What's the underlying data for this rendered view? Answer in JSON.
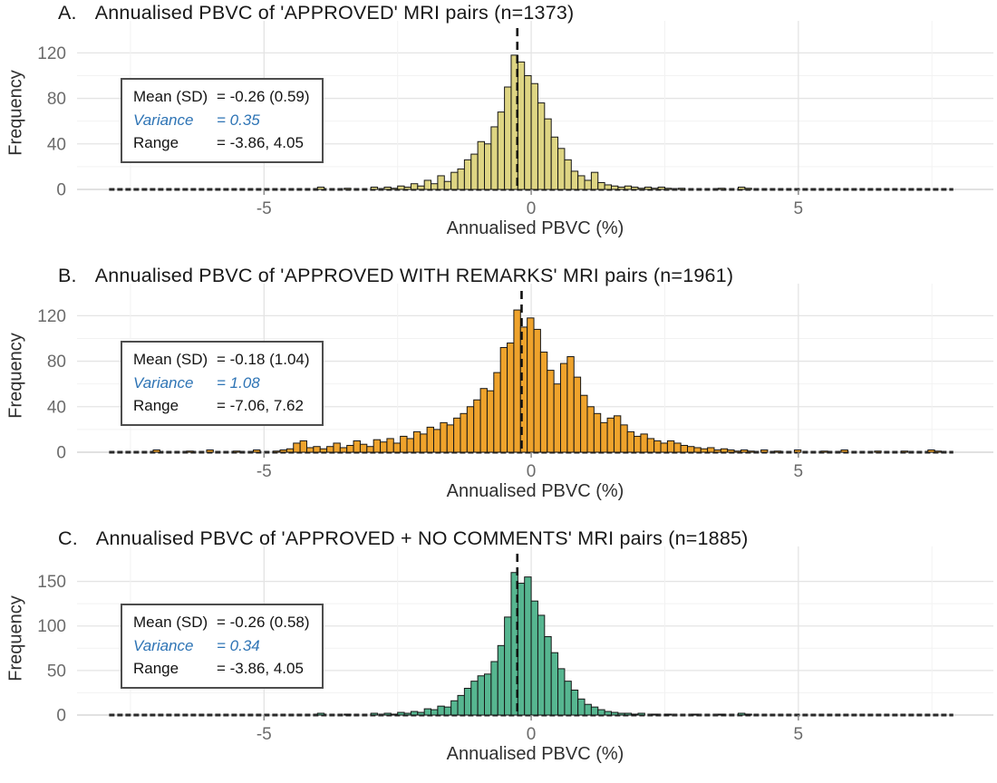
{
  "figure": {
    "x_axis_label": "Annualised PBVC (%)",
    "y_axis_label": "Frequency"
  },
  "colors": {
    "bar_edge": "#161616",
    "mean_line": "#111111",
    "grid_major": "#e4e4e4",
    "grid_minor": "#f2f2f2",
    "baseline_light": "#d9d9d9",
    "baseline_dark": "#2a2a2a",
    "tick_mark": "#8a8a8a",
    "tick_text": "#6b6b6b",
    "variance_blue": "#2e74b5"
  },
  "chart_data": [
    {
      "type": "bar",
      "panel_letter": "A.",
      "title": "Annualised PBVC of 'APPROVED' MRI pairs (n=1373)",
      "n": 1373,
      "xlabel": "Annualised PBVC (%)",
      "ylabel": "Frequency",
      "x_ticks": [
        -5,
        0,
        5
      ],
      "y_ticks": [
        0,
        40,
        80,
        120
      ],
      "xlim": [
        -8.5,
        8.65
      ],
      "ylim": [
        0,
        137
      ],
      "grid": {
        "x_major": [
          -5,
          0,
          5
        ],
        "x_minor": [
          -7.5,
          -2.5,
          2.5,
          7.5
        ],
        "y_major": [
          0,
          40,
          80,
          120
        ],
        "y_minor": [
          20,
          60,
          100
        ]
      },
      "bar_color": "#ded583",
      "mean_line_x": -0.26,
      "stats": {
        "mean_label": "Mean (SD)",
        "mean_value": "= -0.26 (0.59)",
        "variance_label": "Variance",
        "variance_value": "=  0.35",
        "range_label": "Range",
        "range_value": "= -3.86, 4.05"
      },
      "bins": {
        "start": -4.0,
        "width": 0.125,
        "heights": [
          2,
          0,
          0,
          0,
          1,
          0,
          0,
          0,
          2,
          0,
          2,
          1,
          3,
          2,
          5,
          3,
          8,
          5,
          12,
          7,
          15,
          18,
          26,
          31,
          42,
          40,
          55,
          68,
          90,
          118,
          112,
          100,
          93,
          76,
          62,
          46,
          36,
          26,
          16,
          12,
          8,
          15,
          6,
          4,
          3,
          2,
          3,
          2,
          1,
          2,
          1,
          2,
          1,
          0,
          1,
          0,
          0,
          0,
          0,
          0,
          1,
          0,
          0,
          2,
          1,
          0
        ]
      }
    },
    {
      "type": "bar",
      "panel_letter": "B.",
      "title": "Annualised PBVC of 'APPROVED WITH REMARKS' MRI pairs (n=1961)",
      "n": 1961,
      "xlabel": "Annualised PBVC (%)",
      "ylabel": "Frequency",
      "x_ticks": [
        -5,
        0,
        5
      ],
      "y_ticks": [
        0,
        40,
        80,
        120
      ],
      "xlim": [
        -8.5,
        8.65
      ],
      "ylim": [
        0,
        137
      ],
      "grid": {
        "x_major": [
          -5,
          0,
          5
        ],
        "x_minor": [
          -7.5,
          -2.5,
          2.5,
          7.5
        ],
        "y_major": [
          0,
          40,
          80,
          120
        ],
        "y_minor": [
          20,
          60,
          100
        ]
      },
      "bar_color": "#efa32c",
      "mean_line_x": -0.18,
      "stats": {
        "mean_label": "Mean (SD)",
        "mean_value": "= -0.18 (1.04)",
        "variance_label": "Variance",
        "variance_value": "=  1.08",
        "range_label": "Range",
        "range_value": "= -7.06, 7.62"
      },
      "bins": {
        "start": -7.2,
        "width": 0.125,
        "heights": [
          0,
          2,
          0,
          0,
          0,
          0,
          1,
          0,
          0,
          2,
          0,
          0,
          0,
          1,
          0,
          0,
          2,
          0,
          0,
          1,
          2,
          3,
          8,
          10,
          4,
          5,
          3,
          5,
          8,
          4,
          6,
          10,
          7,
          5,
          11,
          9,
          12,
          8,
          14,
          12,
          18,
          16,
          22,
          20,
          26,
          24,
          30,
          34,
          40,
          46,
          56,
          54,
          70,
          92,
          96,
          125,
          110,
          118,
          108,
          88,
          72,
          60,
          78,
          84,
          66,
          50,
          40,
          34,
          26,
          30,
          32,
          24,
          18,
          14,
          16,
          12,
          10,
          8,
          10,
          8,
          6,
          5,
          4,
          3,
          4,
          2,
          3,
          2,
          1,
          2,
          1,
          0,
          2,
          0,
          1,
          0,
          0,
          2,
          0,
          0,
          0,
          1,
          0,
          0,
          2,
          0,
          0,
          0,
          0,
          1,
          0,
          0,
          0,
          1,
          0,
          0,
          0,
          2,
          1,
          0
        ]
      }
    },
    {
      "type": "bar",
      "panel_letter": "C.",
      "title": "Annualised PBVC of 'APPROVED + NO COMMENTS' MRI pairs (n=1885)",
      "n": 1885,
      "xlabel": "Annualised PBVC (%)",
      "ylabel": "Frequency",
      "x_ticks": [
        -5,
        0,
        5
      ],
      "y_ticks": [
        0,
        50,
        100,
        150
      ],
      "xlim": [
        -8.5,
        8.65
      ],
      "ylim": [
        0,
        175
      ],
      "grid": {
        "x_major": [
          -5,
          0,
          5
        ],
        "x_minor": [
          -7.5,
          -2.5,
          2.5,
          7.5
        ],
        "y_major": [
          0,
          50,
          100,
          150
        ],
        "y_minor": [
          25,
          75,
          125
        ]
      },
      "bar_color": "#56b690",
      "mean_line_x": -0.26,
      "stats": {
        "mean_label": "Mean (SD)",
        "mean_value": "= -0.26 (0.58)",
        "variance_label": "Variance",
        "variance_value": "=  0.34",
        "range_label": "Range",
        "range_value": "= -3.86, 4.05"
      },
      "bins": {
        "start": -4.0,
        "width": 0.125,
        "heights": [
          2,
          0,
          0,
          0,
          1,
          0,
          0,
          0,
          2,
          0,
          2,
          1,
          3,
          2,
          4,
          3,
          7,
          6,
          10,
          9,
          16,
          22,
          30,
          38,
          44,
          46,
          60,
          78,
          110,
          160,
          148,
          155,
          128,
          112,
          88,
          70,
          52,
          38,
          28,
          18,
          12,
          9,
          6,
          4,
          3,
          2,
          2,
          1,
          2,
          0,
          1,
          0,
          1,
          0,
          0,
          0,
          1,
          0,
          0,
          0,
          1,
          0,
          0,
          2,
          1,
          0
        ]
      }
    }
  ]
}
